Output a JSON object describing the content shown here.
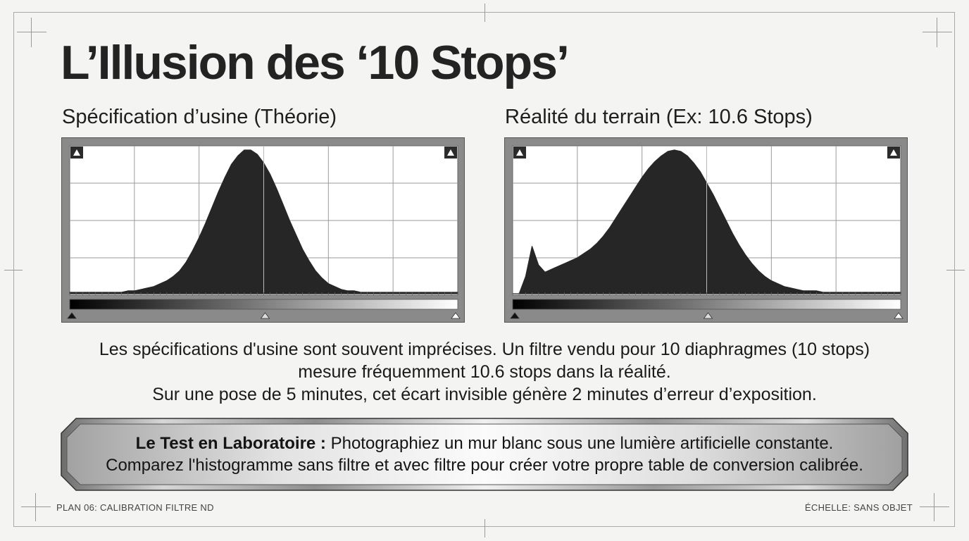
{
  "title": "L’Illusion des ‘10 Stops’",
  "left_panel": {
    "heading": "Spécification d’usine (Théorie)"
  },
  "right_panel": {
    "heading": "Réalité du terrain (Ex: 10.6 Stops)"
  },
  "description": {
    "line1": "Les spécifications d'usine sont souvent imprécises. Un filtre vendu pour 10 diaphragmes (10 stops)",
    "line2": "mesure fréquemment 10.6 stops dans la réalité.",
    "line3": "Sur une pose de 5 minutes, cet écart invisible génère 2 minutes d’erreur d’exposition."
  },
  "banner": {
    "label": "Le Test en Laboratoire :",
    "line1_text": " Photographiez un mur blanc sous une lumière artificielle constante.",
    "line2_text": "Comparez l'histogramme sans filtre et avec filtre pour créer votre propre table de conversion calibrée."
  },
  "footer": {
    "left": "PLAN 06: CALIBRATION FILTRE ND",
    "right": "ÉCHELLE: SANS OBJET"
  },
  "chart_data": [
    {
      "type": "area",
      "title": "Spécification d’usine (Théorie)",
      "x": [
        0,
        1,
        2,
        3,
        4,
        5,
        6,
        7,
        8,
        9,
        10,
        11,
        12,
        13,
        14,
        15,
        16,
        17,
        18,
        19,
        20,
        21,
        22,
        23,
        24,
        25,
        26,
        27,
        28,
        29,
        30,
        31,
        32,
        33,
        34,
        35,
        36,
        37,
        38,
        39,
        40,
        41,
        42,
        43,
        44,
        45,
        46,
        47,
        48,
        49,
        50,
        51,
        52,
        53,
        54,
        55,
        56,
        57,
        58,
        59,
        60
      ],
      "values": [
        0.01,
        0.01,
        0.01,
        0.01,
        0.01,
        0.01,
        0.01,
        0.01,
        0.01,
        0.02,
        0.02,
        0.03,
        0.04,
        0.05,
        0.07,
        0.09,
        0.12,
        0.16,
        0.22,
        0.3,
        0.39,
        0.49,
        0.6,
        0.71,
        0.81,
        0.9,
        0.96,
        1.0,
        1.0,
        0.97,
        0.91,
        0.83,
        0.73,
        0.62,
        0.51,
        0.41,
        0.31,
        0.23,
        0.16,
        0.11,
        0.07,
        0.05,
        0.03,
        0.02,
        0.02,
        0.01,
        0.01,
        0.01,
        0.01,
        0.01,
        0.01,
        0.01,
        0.01,
        0.01,
        0.01,
        0.01,
        0.01,
        0.01,
        0.01,
        0.01,
        0.01
      ],
      "grid": true,
      "fill_color": "#262626"
    },
    {
      "type": "area",
      "title": "Réalité du terrain (Ex: 10.6 Stops)",
      "x": [
        0,
        1,
        2,
        3,
        4,
        5,
        6,
        7,
        8,
        9,
        10,
        11,
        12,
        13,
        14,
        15,
        16,
        17,
        18,
        19,
        20,
        21,
        22,
        23,
        24,
        25,
        26,
        27,
        28,
        29,
        30,
        31,
        32,
        33,
        34,
        35,
        36,
        37,
        38,
        39,
        40,
        41,
        42,
        43,
        44,
        45,
        46,
        47,
        48,
        49,
        50,
        51,
        52,
        53,
        54,
        55,
        56,
        57,
        58,
        59,
        60
      ],
      "values": [
        0.0,
        0.0,
        0.12,
        0.33,
        0.2,
        0.15,
        0.17,
        0.19,
        0.21,
        0.23,
        0.25,
        0.28,
        0.31,
        0.35,
        0.4,
        0.46,
        0.53,
        0.6,
        0.67,
        0.74,
        0.81,
        0.87,
        0.92,
        0.96,
        0.99,
        1.0,
        0.99,
        0.96,
        0.91,
        0.85,
        0.77,
        0.69,
        0.6,
        0.51,
        0.42,
        0.34,
        0.27,
        0.21,
        0.16,
        0.12,
        0.09,
        0.07,
        0.05,
        0.04,
        0.03,
        0.02,
        0.02,
        0.02,
        0.01,
        0.01,
        0.01,
        0.01,
        0.01,
        0.01,
        0.01,
        0.01,
        0.01,
        0.01,
        0.01,
        0.01,
        0.01
      ],
      "grid": true,
      "fill_color": "#262626"
    }
  ]
}
